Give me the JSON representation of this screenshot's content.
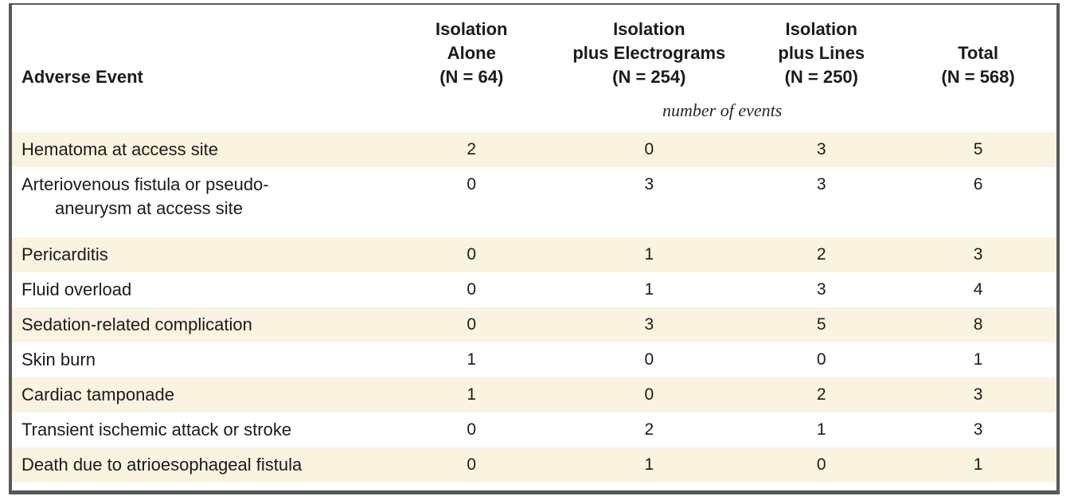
{
  "table": {
    "title_semantic": "Adverse Events Table",
    "columns": [
      {
        "label": "Adverse Event"
      },
      {
        "label": "Isolation\nAlone\n(N = 64)"
      },
      {
        "label": "Isolation\nplus Electrograms\n(N = 254)"
      },
      {
        "label": "Isolation\nplus Lines\n(N = 250)"
      },
      {
        "label": "Total\n(N = 568)"
      }
    ],
    "units_label": "number of events",
    "rows": [
      {
        "label": "Hematoma at access site",
        "values": [
          "2",
          "0",
          "3",
          "5"
        ]
      },
      {
        "label": "Arteriovenous fistula or pseudo-\naneurysm at access site",
        "values": [
          "0",
          "3",
          "3",
          "6"
        ]
      },
      {
        "label": "Pericarditis",
        "values": [
          "0",
          "1",
          "2",
          "3"
        ]
      },
      {
        "label": "Fluid overload",
        "values": [
          "0",
          "1",
          "3",
          "4"
        ]
      },
      {
        "label": "Sedation-related complication",
        "values": [
          "0",
          "3",
          "5",
          "8"
        ]
      },
      {
        "label": "Skin burn",
        "values": [
          "1",
          "0",
          "0",
          "1"
        ]
      },
      {
        "label": "Cardiac tamponade",
        "values": [
          "1",
          "0",
          "2",
          "3"
        ]
      },
      {
        "label": "Transient ischemic attack or stroke",
        "values": [
          "0",
          "2",
          "1",
          "3"
        ]
      },
      {
        "label": "Death due to atrioesophageal fistula",
        "values": [
          "0",
          "1",
          "0",
          "1"
        ]
      }
    ],
    "colors": {
      "row_shade": "#faf3df",
      "frame_border": "#58585a",
      "text": "#1b1b1b"
    }
  }
}
